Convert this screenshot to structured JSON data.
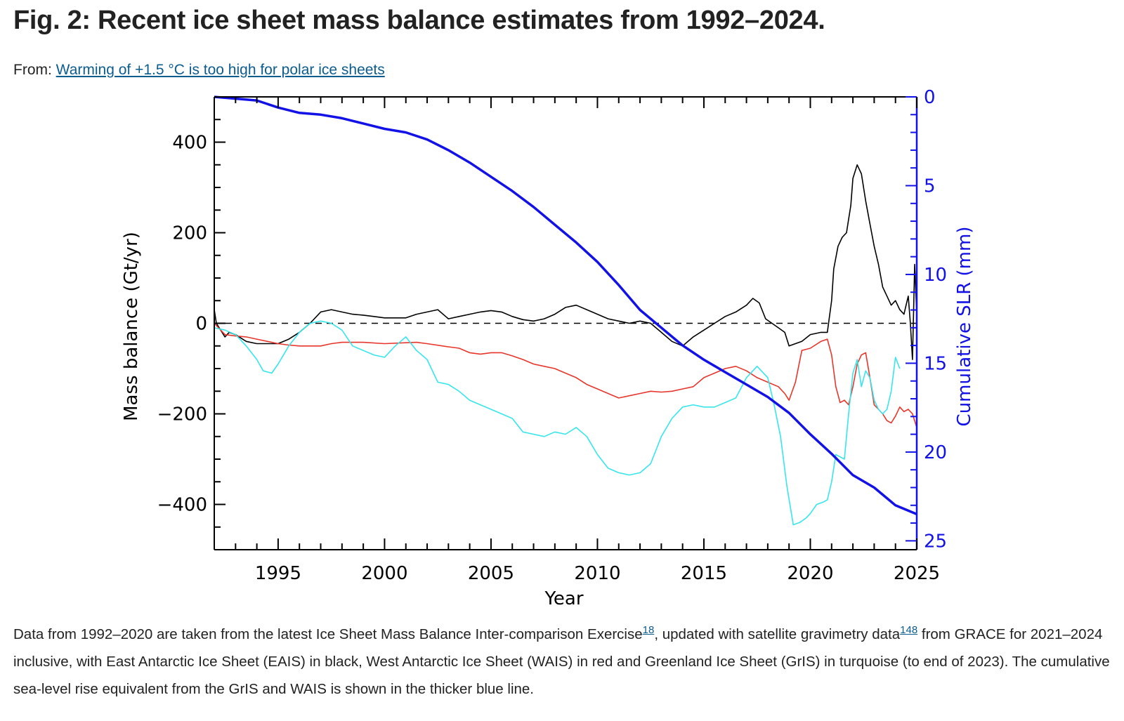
{
  "page": {
    "title": "Fig. 2: Recent ice sheet mass balance estimates from 1992–2024.",
    "from_label": "From:",
    "from_link": "Warming of +1.5 °C is too high for polar ice sheets",
    "caption": {
      "part1": "Data from 1992–2020 are taken from the latest Ice Sheet Mass Balance Inter-comparison Exercise",
      "ref1": "18",
      "part2": ", updated with satellite gravimetry data",
      "ref2": "148",
      "part3": " from GRACE for 2021–2024 inclusive, with East Antarctic Ice Sheet (EAIS) in black, West Antarctic Ice Sheet (WAIS) in red and Greenland Ice Sheet (GrIS) in turquoise (to end of 2023). The cumulative sea-level rise equivalent from the GrIS and WAIS is shown in the thicker blue line."
    }
  },
  "chart_data": {
    "type": "line",
    "xlabel": "Year",
    "ylabel": "Mass balance (Gt/yr)",
    "y2label": "Cumulative SLR (mm)",
    "xlim": [
      1992,
      2025
    ],
    "ylim": [
      -500,
      500
    ],
    "y2lim": [
      0,
      25.5
    ],
    "y2_inverted": true,
    "x_ticks": [
      1995,
      2000,
      2005,
      2010,
      2015,
      2020,
      2025
    ],
    "y_ticks": [
      -400,
      -200,
      0,
      200,
      400
    ],
    "y2_ticks": [
      0,
      5,
      10,
      15,
      20,
      25
    ],
    "reference_line": {
      "y": 0,
      "style": "dashed"
    },
    "grid": false,
    "series": [
      {
        "key": "eais",
        "axis": "left",
        "color": "#000000",
        "x": [
          1992.0,
          1992.1,
          1992.3,
          1992.5,
          1992.7,
          1993.0,
          1993.5,
          1994.0,
          1994.5,
          1995.0,
          1995.5,
          1996.0,
          1996.5,
          1997.0,
          1997.5,
          1998.0,
          1998.5,
          1999.0,
          1999.5,
          2000.0,
          2001.0,
          2001.5,
          2002.0,
          2002.5,
          2003.0,
          2003.5,
          2004.0,
          2004.5,
          2005.0,
          2005.5,
          2006.0,
          2006.5,
          2007.0,
          2007.5,
          2008.0,
          2008.5,
          2009.0,
          2009.5,
          2010.0,
          2010.5,
          2011.0,
          2011.5,
          2012.0,
          2012.5,
          2013.0,
          2013.5,
          2014.0,
          2014.5,
          2015.0,
          2015.5,
          2016.0,
          2016.5,
          2017.0,
          2017.3,
          2017.6,
          2017.9,
          2018.2,
          2018.5,
          2018.8,
          2019.0,
          2019.3,
          2019.6,
          2020.0,
          2020.5,
          2020.8,
          2021.0,
          2021.1,
          2021.3,
          2021.5,
          2021.7,
          2021.8,
          2021.9,
          2022.0,
          2022.2,
          2022.4,
          2022.6,
          2022.8,
          2023.0,
          2023.2,
          2023.4,
          2023.6,
          2023.8,
          2024.0,
          2024.2,
          2024.4,
          2024.5,
          2024.6,
          2024.7,
          2024.8,
          2024.9,
          2025.0
        ],
        "y": [
          30,
          0,
          -15,
          -30,
          -20,
          -25,
          -40,
          -45,
          -45,
          -45,
          -35,
          -20,
          0,
          25,
          30,
          25,
          20,
          18,
          15,
          12,
          12,
          20,
          25,
          30,
          10,
          15,
          20,
          25,
          28,
          25,
          15,
          8,
          5,
          10,
          20,
          35,
          40,
          30,
          20,
          10,
          5,
          0,
          5,
          0,
          -20,
          -40,
          -50,
          -30,
          -15,
          0,
          15,
          25,
          40,
          55,
          45,
          10,
          0,
          -10,
          -20,
          -50,
          -45,
          -40,
          -25,
          -20,
          -20,
          50,
          120,
          170,
          190,
          200,
          230,
          260,
          320,
          350,
          330,
          270,
          220,
          170,
          130,
          80,
          60,
          40,
          50,
          30,
          20,
          40,
          60,
          0,
          -80,
          130,
          20
        ]
      },
      {
        "key": "wais",
        "axis": "left",
        "color": "#e8352a",
        "x": [
          1992.0,
          1992.5,
          1993.0,
          1993.5,
          1994.0,
          1994.5,
          1995.0,
          1995.5,
          1996.0,
          1997.0,
          1997.5,
          1998.0,
          1999.0,
          2000.0,
          2001.0,
          2001.5,
          2002.0,
          2003.0,
          2003.5,
          2004.0,
          2004.5,
          2005.0,
          2005.5,
          2006.0,
          2006.5,
          2007.0,
          2007.5,
          2008.0,
          2008.5,
          2009.0,
          2009.5,
          2010.0,
          2010.5,
          2011.0,
          2011.5,
          2012.0,
          2012.5,
          2013.0,
          2013.5,
          2014.0,
          2014.5,
          2015.0,
          2015.5,
          2016.0,
          2016.5,
          2017.0,
          2017.5,
          2018.0,
          2018.5,
          2018.8,
          2019.0,
          2019.3,
          2019.6,
          2020.0,
          2020.5,
          2020.8,
          2021.0,
          2021.2,
          2021.4,
          2021.6,
          2021.8,
          2022.0,
          2022.2,
          2022.4,
          2022.6,
          2022.8,
          2023.0,
          2023.2,
          2023.4,
          2023.6,
          2023.8,
          2024.0,
          2024.2,
          2024.4,
          2024.6,
          2024.8,
          2025.0
        ],
        "y": [
          0,
          -25,
          -28,
          -30,
          -35,
          -40,
          -45,
          -48,
          -50,
          -50,
          -45,
          -42,
          -42,
          -45,
          -43,
          -42,
          -45,
          -52,
          -55,
          -65,
          -68,
          -65,
          -65,
          -72,
          -80,
          -90,
          -95,
          -100,
          -110,
          -120,
          -135,
          -145,
          -155,
          -165,
          -160,
          -155,
          -150,
          -152,
          -150,
          -145,
          -140,
          -120,
          -110,
          -100,
          -95,
          -105,
          -120,
          -130,
          -140,
          -155,
          -170,
          -130,
          -60,
          -55,
          -40,
          -35,
          -70,
          -140,
          -175,
          -170,
          -180,
          -140,
          -90,
          -70,
          -65,
          -120,
          -180,
          -190,
          -200,
          -215,
          -220,
          -205,
          -185,
          -195,
          -190,
          -200,
          -230
        ]
      },
      {
        "key": "gris",
        "axis": "left",
        "color": "#36e6eb",
        "x": [
          1992.0,
          1992.5,
          1993.0,
          1993.5,
          1994.0,
          1994.3,
          1994.7,
          1995.0,
          1995.5,
          1996.0,
          1996.5,
          1997.0,
          1997.5,
          1998.0,
          1998.5,
          1999.0,
          1999.5,
          2000.0,
          2000.5,
          2001.0,
          2001.5,
          2002.0,
          2002.5,
          2003.0,
          2003.5,
          2004.0,
          2004.5,
          2005.0,
          2005.5,
          2006.0,
          2006.5,
          2007.0,
          2007.5,
          2008.0,
          2008.5,
          2009.0,
          2009.5,
          2010.0,
          2010.5,
          2011.0,
          2011.5,
          2012.0,
          2012.5,
          2013.0,
          2013.5,
          2014.0,
          2014.5,
          2015.0,
          2015.5,
          2016.0,
          2016.5,
          2017.0,
          2017.5,
          2018.0,
          2018.3,
          2018.6,
          2018.9,
          2019.2,
          2019.5,
          2019.8,
          2020.0,
          2020.3,
          2020.6,
          2020.8,
          2021.0,
          2021.2,
          2021.4,
          2021.6,
          2021.8,
          2022.0,
          2022.2,
          2022.4,
          2022.6,
          2022.8,
          2023.0,
          2023.2,
          2023.4,
          2023.6,
          2023.8,
          2024.0,
          2024.2
        ],
        "y": [
          -10,
          -15,
          -25,
          -50,
          -80,
          -105,
          -110,
          -90,
          -50,
          -20,
          0,
          5,
          0,
          -15,
          -50,
          -60,
          -70,
          -75,
          -50,
          -30,
          -60,
          -80,
          -130,
          -135,
          -150,
          -170,
          -180,
          -190,
          -200,
          -210,
          -240,
          -245,
          -250,
          -240,
          -245,
          -230,
          -250,
          -290,
          -320,
          -330,
          -335,
          -330,
          -310,
          -250,
          -210,
          -185,
          -180,
          -185,
          -185,
          -175,
          -165,
          -120,
          -95,
          -120,
          -180,
          -250,
          -360,
          -445,
          -440,
          -430,
          -420,
          -400,
          -395,
          -390,
          -350,
          -290,
          -295,
          -300,
          -200,
          -110,
          -80,
          -140,
          -105,
          -120,
          -170,
          -190,
          -200,
          -190,
          -150,
          -75,
          -100
        ]
      },
      {
        "key": "slr",
        "axis": "right",
        "color": "#1111e8",
        "width": 3.5,
        "x": [
          1992.0,
          1993.0,
          1994.0,
          1995.0,
          1996.0,
          1997.0,
          1998.0,
          1999.0,
          2000.0,
          2001.0,
          2002.0,
          2003.0,
          2004.0,
          2005.0,
          2006.0,
          2007.0,
          2008.0,
          2009.0,
          2010.0,
          2011.0,
          2012.0,
          2013.0,
          2014.0,
          2015.0,
          2016.0,
          2017.0,
          2018.0,
          2019.0,
          2020.0,
          2021.0,
          2022.0,
          2023.0,
          2024.0,
          2025.0
        ],
        "y": [
          0.0,
          0.1,
          0.2,
          0.6,
          0.9,
          1.0,
          1.2,
          1.5,
          1.8,
          2.0,
          2.4,
          3.0,
          3.7,
          4.5,
          5.3,
          6.2,
          7.2,
          8.2,
          9.3,
          10.6,
          12.0,
          13.0,
          14.0,
          14.8,
          15.5,
          16.2,
          16.9,
          17.8,
          19.0,
          20.1,
          21.3,
          22.0,
          23.0,
          23.5
        ]
      }
    ]
  }
}
